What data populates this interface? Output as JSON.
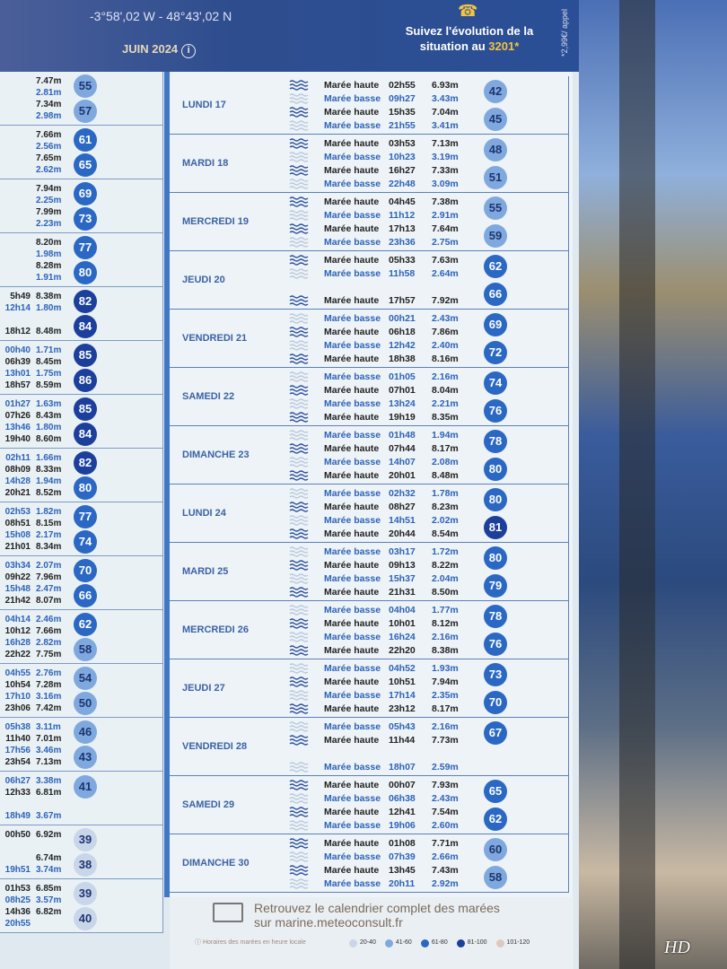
{
  "header": {
    "coordinates": "-3°58',02 W - 48°43',02 N",
    "month": "JUIN 2024",
    "info_icon": "info-icon",
    "phone_icon": "phone-icon",
    "follow_text": "Suivez l'évolution de la situation au",
    "follow_number": "3201*",
    "price_note": "*2,99€/ appel"
  },
  "colors": {
    "coef_20_40": "#c9d6ea",
    "coef_41_60": "#7fa9de",
    "coef_61_80": "#2a68c4",
    "coef_81_100": "#1d3f9c",
    "coef_101_120": "#e0c9bb",
    "basse": "#2d63b8",
    "haute": "#222222"
  },
  "left_column": [
    {
      "rows": [
        [
          "",
          "7.47m",
          "haute"
        ],
        [
          "",
          "2.81m",
          "basse"
        ],
        [
          "",
          "7.34m",
          "haute"
        ],
        [
          "",
          "2.98m",
          "basse"
        ]
      ],
      "coefs": [
        55,
        57
      ]
    },
    {
      "rows": [
        [
          "",
          "7.66m",
          "haute"
        ],
        [
          "",
          "2.56m",
          "basse"
        ],
        [
          "",
          "7.65m",
          "haute"
        ],
        [
          "",
          "2.62m",
          "basse"
        ]
      ],
      "coefs": [
        61,
        65
      ]
    },
    {
      "rows": [
        [
          "",
          "7.94m",
          "haute"
        ],
        [
          "",
          "2.25m",
          "basse"
        ],
        [
          "",
          "7.99m",
          "haute"
        ],
        [
          "",
          "2.23m",
          "basse"
        ]
      ],
      "coefs": [
        69,
        73
      ]
    },
    {
      "rows": [
        [
          "",
          "8.20m",
          "haute"
        ],
        [
          "",
          "1.98m",
          "basse"
        ],
        [
          "",
          "8.28m",
          "haute"
        ],
        [
          "",
          "1.91m",
          "basse"
        ]
      ],
      "coefs": [
        77,
        80
      ]
    },
    {
      "rows": [
        [
          "5h49",
          "8.38m",
          "haute"
        ],
        [
          "12h14",
          "1.80m",
          "basse"
        ],
        [
          "",
          ""
        ],
        [
          "18h12",
          "8.48m",
          "haute"
        ]
      ],
      "coefs": [
        82,
        84
      ]
    },
    {
      "rows": [
        [
          "00h40",
          "1.71m",
          "basse"
        ],
        [
          "06h39",
          "8.45m",
          "haute"
        ],
        [
          "13h01",
          "1.75m",
          "basse"
        ],
        [
          "18h57",
          "8.59m",
          "haute"
        ]
      ],
      "coefs": [
        85,
        86
      ]
    },
    {
      "rows": [
        [
          "01h27",
          "1.63m",
          "basse"
        ],
        [
          "07h26",
          "8.43m",
          "haute"
        ],
        [
          "13h46",
          "1.80m",
          "basse"
        ],
        [
          "19h40",
          "8.60m",
          "haute"
        ]
      ],
      "coefs": [
        85,
        84
      ]
    },
    {
      "rows": [
        [
          "02h11",
          "1.66m",
          "basse"
        ],
        [
          "08h09",
          "8.33m",
          "haute"
        ],
        [
          "14h28",
          "1.94m",
          "basse"
        ],
        [
          "20h21",
          "8.52m",
          "haute"
        ]
      ],
      "coefs": [
        82,
        80
      ]
    },
    {
      "rows": [
        [
          "02h53",
          "1.82m",
          "basse"
        ],
        [
          "08h51",
          "8.15m",
          "haute"
        ],
        [
          "15h08",
          "2.17m",
          "basse"
        ],
        [
          "21h01",
          "8.34m",
          "haute"
        ]
      ],
      "coefs": [
        77,
        74
      ]
    },
    {
      "rows": [
        [
          "03h34",
          "2.07m",
          "basse"
        ],
        [
          "09h22",
          "7.96m",
          "haute"
        ],
        [
          "15h48",
          "2.47m",
          "basse"
        ],
        [
          "21h42",
          "8.07m",
          "haute"
        ]
      ],
      "coefs": [
        70,
        66
      ]
    },
    {
      "rows": [
        [
          "04h14",
          "2.46m",
          "basse"
        ],
        [
          "10h12",
          "7.66m",
          "haute"
        ],
        [
          "16h28",
          "2.82m",
          "basse"
        ],
        [
          "22h22",
          "7.75m",
          "haute"
        ]
      ],
      "coefs": [
        62,
        58
      ]
    },
    {
      "rows": [
        [
          "04h55",
          "2.76m",
          "basse"
        ],
        [
          "10h54",
          "7.28m",
          "haute"
        ],
        [
          "17h10",
          "3.16m",
          "basse"
        ],
        [
          "23h06",
          "7.42m",
          "haute"
        ]
      ],
      "coefs": [
        54,
        50
      ]
    },
    {
      "rows": [
        [
          "05h38",
          "3.11m",
          "basse"
        ],
        [
          "11h40",
          "7.01m",
          "haute"
        ],
        [
          "17h56",
          "3.46m",
          "basse"
        ],
        [
          "23h54",
          "7.13m",
          "haute"
        ]
      ],
      "coefs": [
        46,
        43
      ]
    },
    {
      "rows": [
        [
          "06h27",
          "3.38m",
          "basse"
        ],
        [
          "12h33",
          "6.81m",
          "haute"
        ],
        [
          "",
          ""
        ],
        [
          "18h49",
          "3.67m",
          "basse"
        ]
      ],
      "coefs": [
        41
      ]
    },
    {
      "rows": [
        [
          "00h50",
          "6.92m",
          "haute"
        ],
        [
          "",
          "",
          "basse"
        ],
        [
          "",
          "6.74m",
          "haute"
        ],
        [
          "19h51",
          "3.74m",
          "basse"
        ]
      ],
      "coefs": [
        39,
        38
      ]
    },
    {
      "rows": [
        [
          "01h53",
          "6.85m",
          "haute"
        ],
        [
          "08h25",
          "3.57m",
          "basse"
        ],
        [
          "14h36",
          "6.82m",
          "haute"
        ],
        [
          "20h55",
          "",
          "basse"
        ]
      ],
      "coefs": [
        39,
        40
      ]
    }
  ],
  "labels": {
    "haute": "Marée haute",
    "basse": "Marée basse"
  },
  "days": [
    {
      "name": "LUNDI 17",
      "tides": [
        [
          "haute",
          "02h55",
          "6.93m"
        ],
        [
          "basse",
          "09h27",
          "3.43m"
        ],
        [
          "haute",
          "15h35",
          "7.04m"
        ],
        [
          "basse",
          "21h55",
          "3.41m"
        ]
      ],
      "coefs": [
        42,
        45
      ]
    },
    {
      "name": "MARDI 18",
      "tides": [
        [
          "haute",
          "03h53",
          "7.13m"
        ],
        [
          "basse",
          "10h23",
          "3.19m"
        ],
        [
          "haute",
          "16h27",
          "7.33m"
        ],
        [
          "basse",
          "22h48",
          "3.09m"
        ]
      ],
      "coefs": [
        48,
        51
      ]
    },
    {
      "name": "MERCREDI 19",
      "tides": [
        [
          "haute",
          "04h45",
          "7.38m"
        ],
        [
          "basse",
          "11h12",
          "2.91m"
        ],
        [
          "haute",
          "17h13",
          "7.64m"
        ],
        [
          "basse",
          "23h36",
          "2.75m"
        ]
      ],
      "coefs": [
        55,
        59
      ]
    },
    {
      "name": "JEUDI 20",
      "tides": [
        [
          "haute",
          "05h33",
          "7.63m"
        ],
        [
          "basse",
          "11h58",
          "2.64m"
        ],
        null,
        [
          "haute",
          "17h57",
          "7.92m"
        ]
      ],
      "coefs": [
        62,
        66
      ]
    },
    {
      "name": "VENDREDI 21",
      "tides": [
        [
          "basse",
          "00h21",
          "2.43m"
        ],
        [
          "haute",
          "06h18",
          "7.86m"
        ],
        [
          "basse",
          "12h42",
          "2.40m"
        ],
        [
          "haute",
          "18h38",
          "8.16m"
        ]
      ],
      "coefs": [
        69,
        72
      ]
    },
    {
      "name": "SAMEDI 22",
      "tides": [
        [
          "basse",
          "01h05",
          "2.16m"
        ],
        [
          "haute",
          "07h01",
          "8.04m"
        ],
        [
          "basse",
          "13h24",
          "2.21m"
        ],
        [
          "haute",
          "19h19",
          "8.35m"
        ]
      ],
      "coefs": [
        74,
        76
      ]
    },
    {
      "name": "DIMANCHE 23",
      "tides": [
        [
          "basse",
          "01h48",
          "1.94m"
        ],
        [
          "haute",
          "07h44",
          "8.17m"
        ],
        [
          "basse",
          "14h07",
          "2.08m"
        ],
        [
          "haute",
          "20h01",
          "8.48m"
        ]
      ],
      "coefs": [
        78,
        80
      ]
    },
    {
      "name": "LUNDI 24",
      "tides": [
        [
          "basse",
          "02h32",
          "1.78m"
        ],
        [
          "haute",
          "08h27",
          "8.23m"
        ],
        [
          "basse",
          "14h51",
          "2.02m"
        ],
        [
          "haute",
          "20h44",
          "8.54m"
        ]
      ],
      "coefs": [
        80,
        81
      ]
    },
    {
      "name": "MARDI 25",
      "tides": [
        [
          "basse",
          "03h17",
          "1.72m"
        ],
        [
          "haute",
          "09h13",
          "8.22m"
        ],
        [
          "basse",
          "15h37",
          "2.04m"
        ],
        [
          "haute",
          "21h31",
          "8.50m"
        ]
      ],
      "coefs": [
        80,
        79
      ]
    },
    {
      "name": "MERCREDI 26",
      "tides": [
        [
          "basse",
          "04h04",
          "1.77m"
        ],
        [
          "haute",
          "10h01",
          "8.12m"
        ],
        [
          "basse",
          "16h24",
          "2.16m"
        ],
        [
          "haute",
          "22h20",
          "8.38m"
        ]
      ],
      "coefs": [
        78,
        76
      ]
    },
    {
      "name": "JEUDI 27",
      "tides": [
        [
          "basse",
          "04h52",
          "1.93m"
        ],
        [
          "haute",
          "10h51",
          "7.94m"
        ],
        [
          "basse",
          "17h14",
          "2.35m"
        ],
        [
          "haute",
          "23h12",
          "8.17m"
        ]
      ],
      "coefs": [
        73,
        70
      ]
    },
    {
      "name": "VENDREDI 28",
      "tides": [
        [
          "basse",
          "05h43",
          "2.16m"
        ],
        [
          "haute",
          "11h44",
          "7.73m"
        ],
        null,
        [
          "basse",
          "18h07",
          "2.59m"
        ]
      ],
      "coefs": [
        67
      ]
    },
    {
      "name": "SAMEDI 29",
      "tides": [
        [
          "haute",
          "00h07",
          "7.93m"
        ],
        [
          "basse",
          "06h38",
          "2.43m"
        ],
        [
          "haute",
          "12h41",
          "7.54m"
        ],
        [
          "basse",
          "19h06",
          "2.60m"
        ]
      ],
      "coefs": [
        65,
        62
      ]
    },
    {
      "name": "DIMANCHE 30",
      "tides": [
        [
          "haute",
          "01h08",
          "7.71m"
        ],
        [
          "basse",
          "07h39",
          "2.66m"
        ],
        [
          "haute",
          "13h45",
          "7.43m"
        ],
        [
          "basse",
          "20h11",
          "2.92m"
        ]
      ],
      "coefs": [
        60,
        58
      ]
    }
  ],
  "footer": {
    "line1": "Retrouvez le calendrier complet des marées",
    "line2": "sur marine.meteoconsult.fr",
    "note": "Horaires des marées en heure locale",
    "legend": [
      "20-40",
      "41-60",
      "61-80",
      "81-100",
      "101-120"
    ]
  },
  "watermark": "HD"
}
